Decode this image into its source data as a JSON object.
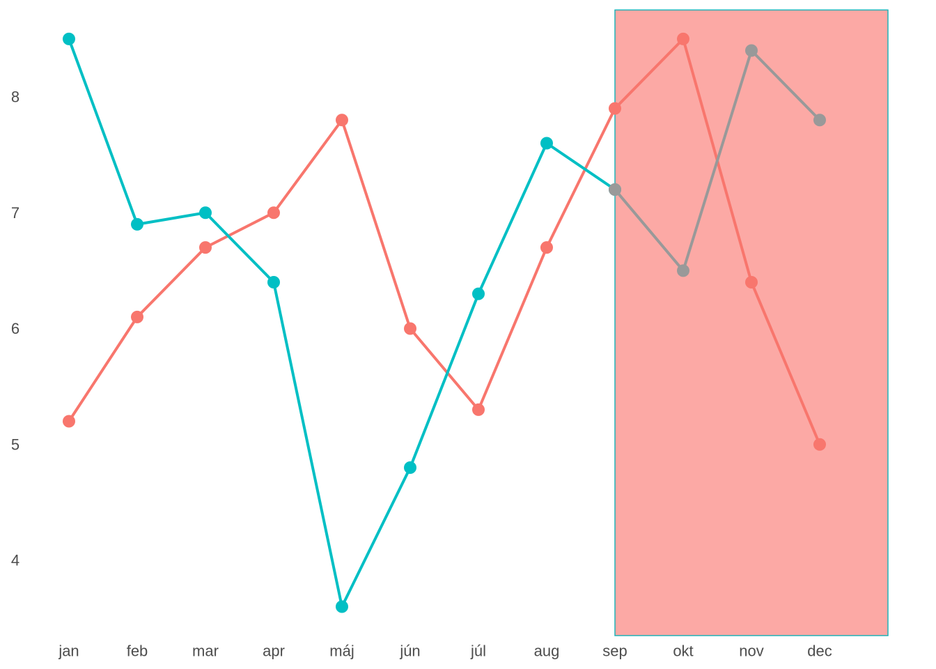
{
  "chart_data": {
    "type": "line",
    "title": "",
    "xlabel": "",
    "ylabel": "",
    "categories": [
      "jan",
      "feb",
      "mar",
      "apr",
      "máj",
      "jún",
      "júl",
      "aug",
      "sep",
      "okt",
      "nov",
      "dec"
    ],
    "y_ticks": [
      "4",
      "5",
      "6",
      "7",
      "8"
    ],
    "ylim": [
      3.35,
      8.75
    ],
    "grid": false,
    "legend": "none",
    "series": [
      {
        "color": "#F8766D",
        "values": [
          5.2,
          6.1,
          6.7,
          7.0,
          7.8,
          6.0,
          5.3,
          6.7,
          7.9,
          8.5,
          6.4,
          5.0
        ]
      },
      {
        "color": "#00BFC4",
        "values": [
          8.5,
          6.9,
          7.0,
          6.4,
          3.6,
          4.8,
          6.3,
          7.6,
          7.2,
          null,
          null,
          null
        ]
      },
      {
        "color": "#999999",
        "values": [
          null,
          null,
          null,
          null,
          null,
          null,
          null,
          null,
          7.2,
          6.5,
          8.4,
          7.8
        ]
      }
    ],
    "highlight_region": {
      "from": "sep",
      "to": "dec",
      "fill_color": "#FCA9A5",
      "border_color": "#1FB3B8"
    }
  }
}
